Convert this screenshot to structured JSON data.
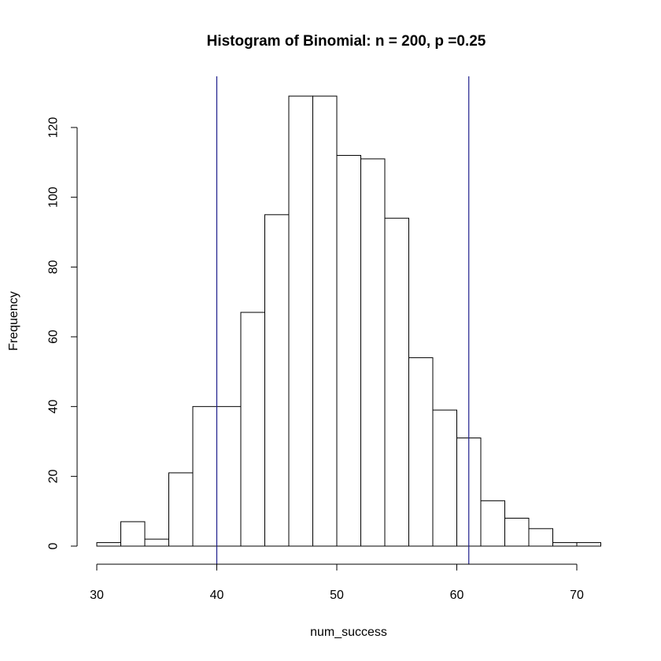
{
  "chart_data": {
    "type": "bar",
    "title": "Histogram of Binomial: n = 200, p =0.25",
    "xlabel": "num_success",
    "ylabel": "Frequency",
    "xlim": [
      30,
      72
    ],
    "ylim": [
      0,
      130
    ],
    "x_ticks": [
      30,
      40,
      50,
      60,
      70
    ],
    "y_ticks": [
      0,
      20,
      40,
      60,
      80,
      100,
      120
    ],
    "bins": [
      {
        "start": 30,
        "end": 32,
        "count": 1
      },
      {
        "start": 32,
        "end": 34,
        "count": 7
      },
      {
        "start": 34,
        "end": 36,
        "count": 2
      },
      {
        "start": 36,
        "end": 38,
        "count": 21
      },
      {
        "start": 38,
        "end": 40,
        "count": 40
      },
      {
        "start": 40,
        "end": 42,
        "count": 40
      },
      {
        "start": 42,
        "end": 44,
        "count": 67
      },
      {
        "start": 44,
        "end": 46,
        "count": 95
      },
      {
        "start": 46,
        "end": 48,
        "count": 129
      },
      {
        "start": 48,
        "end": 50,
        "count": 129
      },
      {
        "start": 50,
        "end": 52,
        "count": 112
      },
      {
        "start": 52,
        "end": 54,
        "count": 111
      },
      {
        "start": 54,
        "end": 56,
        "count": 94
      },
      {
        "start": 56,
        "end": 58,
        "count": 54
      },
      {
        "start": 58,
        "end": 60,
        "count": 39
      },
      {
        "start": 60,
        "end": 62,
        "count": 31
      },
      {
        "start": 62,
        "end": 64,
        "count": 13
      },
      {
        "start": 64,
        "end": 66,
        "count": 8
      },
      {
        "start": 66,
        "end": 68,
        "count": 5
      },
      {
        "start": 68,
        "end": 70,
        "count": 1
      },
      {
        "start": 70,
        "end": 72,
        "count": 1
      }
    ],
    "vlines": [
      {
        "x": 40,
        "color": "#1e1e8c"
      },
      {
        "x": 61,
        "color": "#1e1e8c"
      }
    ],
    "bar_fill": "#ffffff",
    "bar_stroke": "#000000",
    "grid": false
  }
}
